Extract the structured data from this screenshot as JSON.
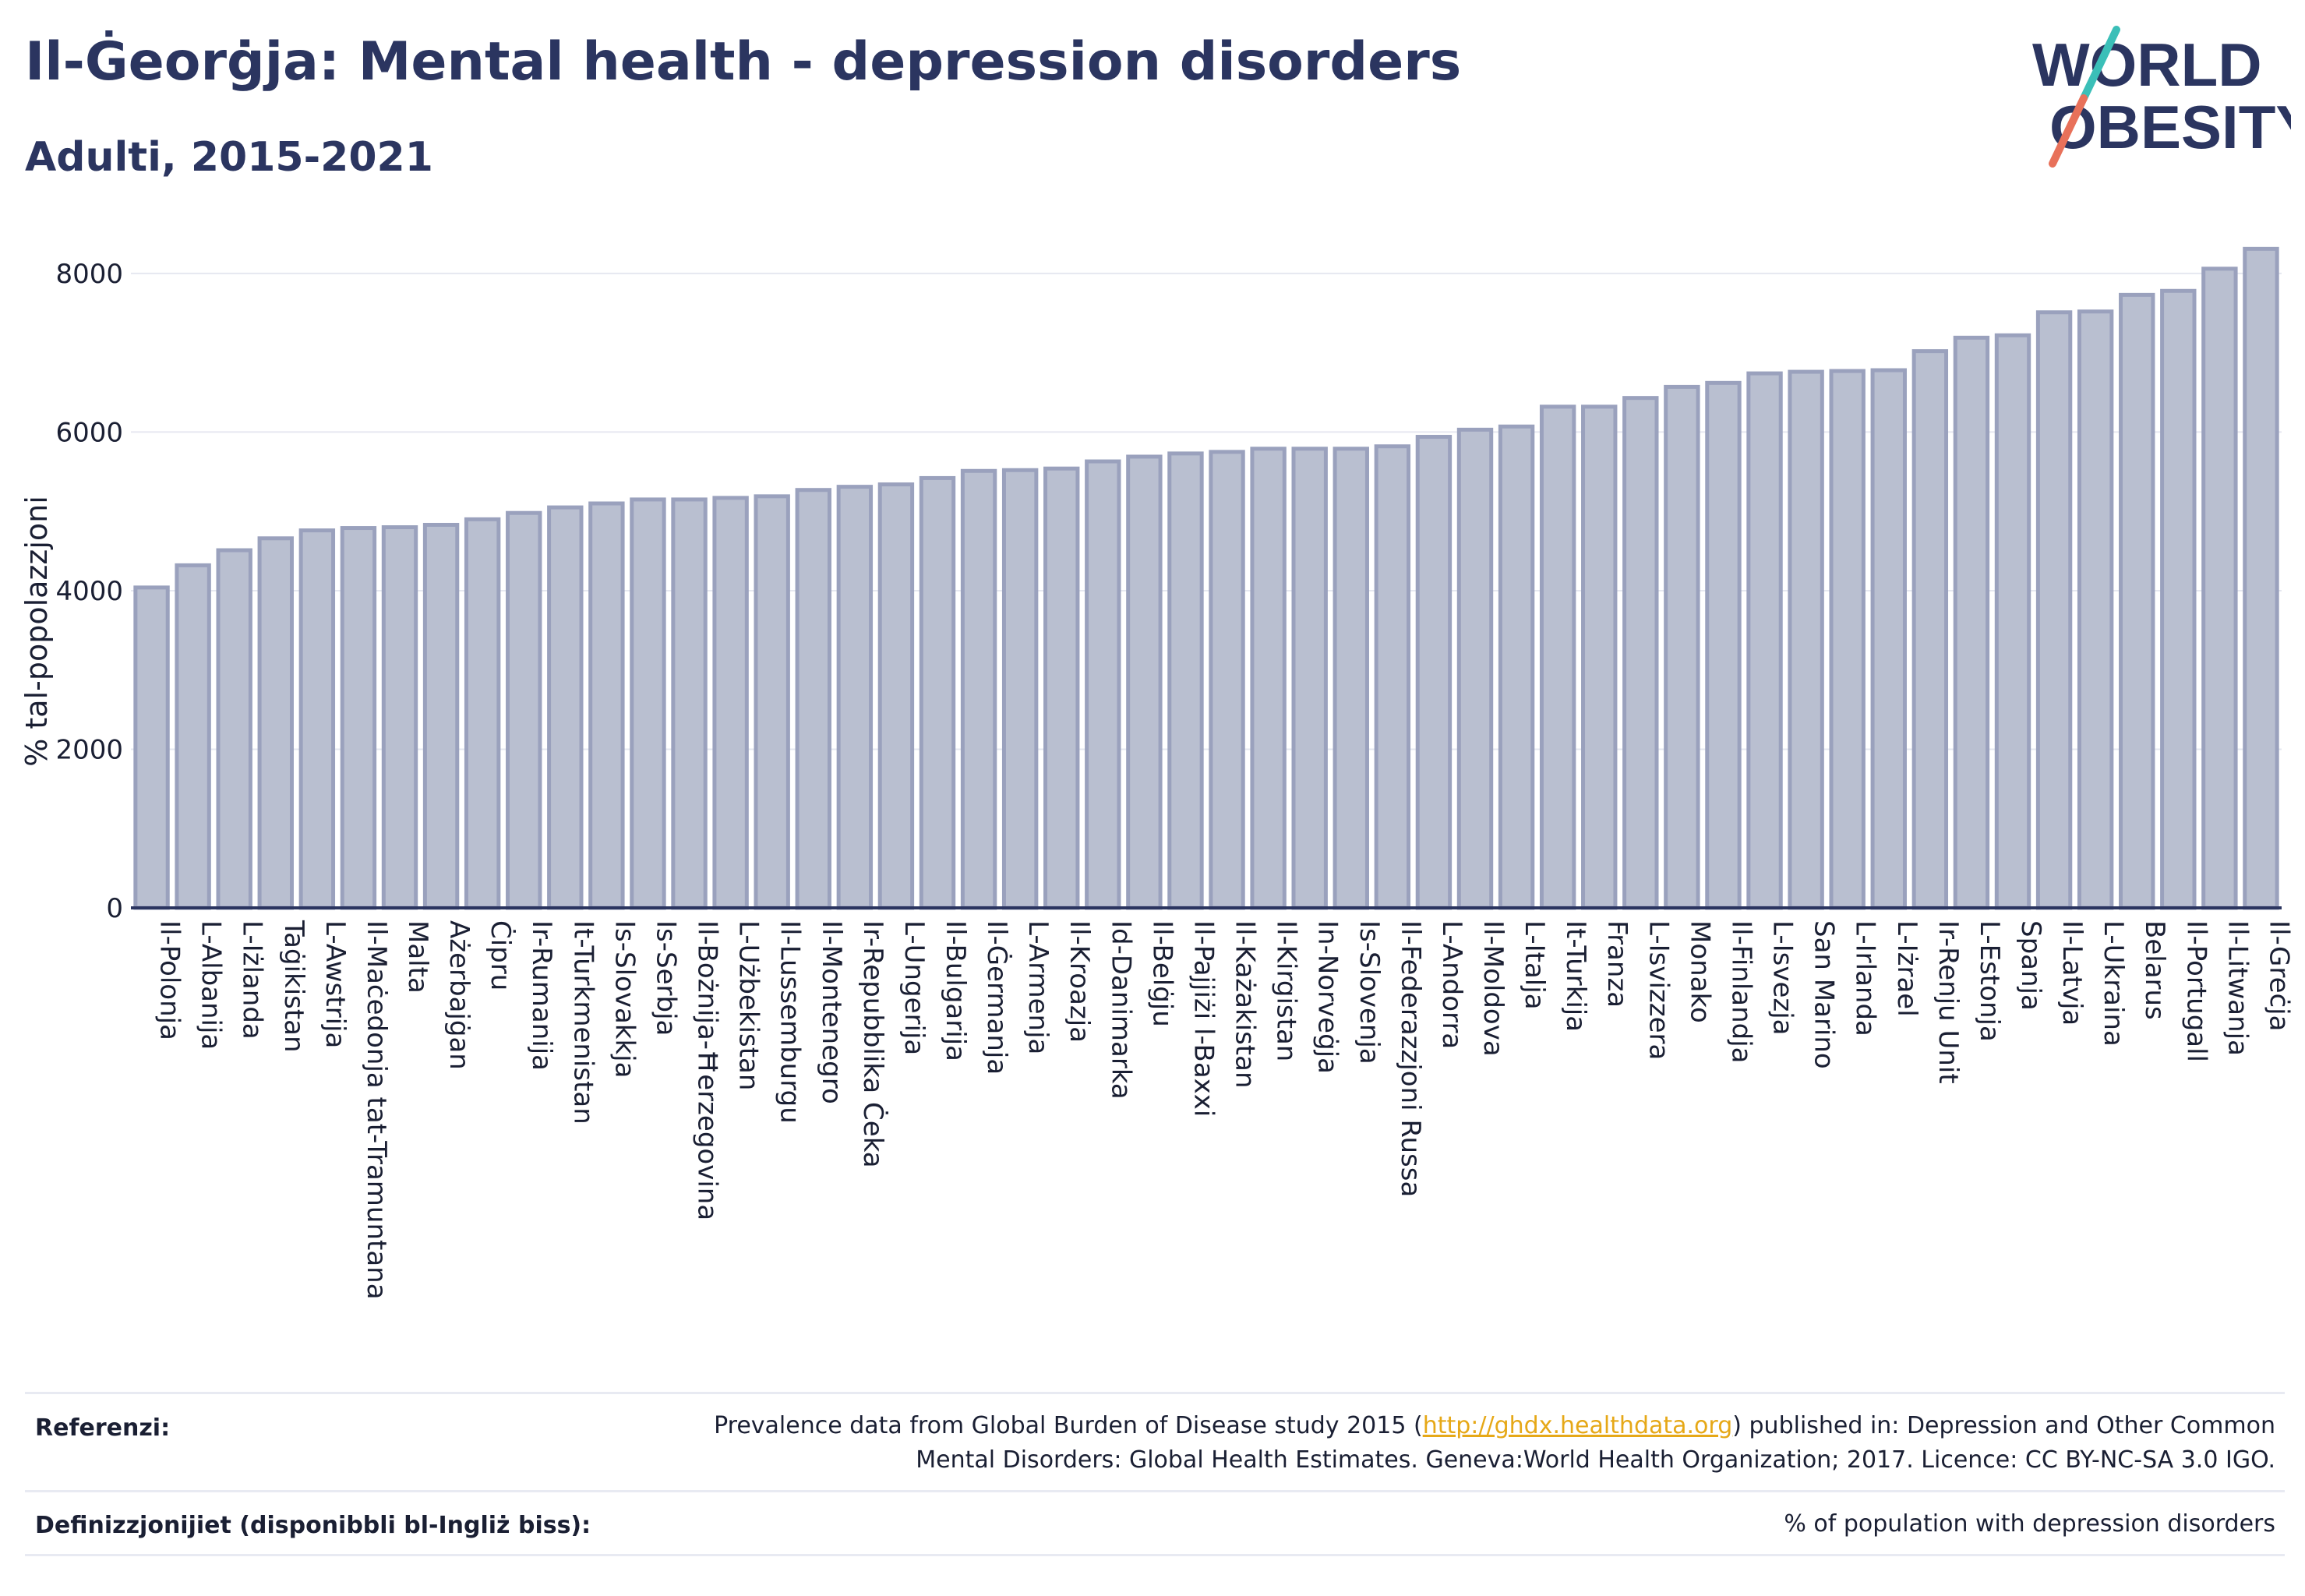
{
  "header": {
    "title": "Il-Ġeorġja: Mental health - depression disorders",
    "subtitle": "Adulti, 2015-2021"
  },
  "logo": {
    "line1": "WORLD",
    "line2": "OBESITY",
    "accent_teal": "#3bbfb8",
    "accent_coral": "#e8715a",
    "text_color": "#2b3560"
  },
  "colors": {
    "bar_fill": "#b9bfd0",
    "bar_stroke": "#9aa1bd",
    "axis": "#2b3560",
    "grid": "#e6e8f0",
    "text": "#1a1f33"
  },
  "chart_data": {
    "type": "bar",
    "title": "Il-Ġeorġja: Mental health - depression disorders",
    "subtitle": "Adulti, 2015-2021",
    "xlabel": "",
    "ylabel": "% tal-popolazzjoni",
    "ylim": [
      0,
      8500
    ],
    "yticks": [
      0,
      2000,
      4000,
      6000,
      8000
    ],
    "grid": true,
    "categories": [
      "Il-Polonja",
      "L-Albanija",
      "L-Iżlanda",
      "Taġikistan",
      "L-Awstrija",
      "Il-Maċedonja tat-Tramuntana",
      "Malta",
      "Ażerbajġan",
      "Ċipru",
      "Ir-Rumanija",
      "It-Turkmenistan",
      "Is-Slovakkja",
      "Is-Serbja",
      "Il-Bożnija-Ħerzegovina",
      "L-Użbekistan",
      "Il-Lussemburgu",
      "Il-Montenegro",
      "Ir-Repubblika Ċeka",
      "L-Ungerija",
      "Il-Bulgarija",
      "Il-Ġermanja",
      "L-Armenja",
      "Il-Kroazja",
      "Id-Danimarka",
      "Il-Belġju",
      "Il-Pajjiżi l-Baxxi",
      "Il-Każakistan",
      "Il-Kirgistan",
      "In-Norveġja",
      "Is-Slovenja",
      "Il-Federazzjoni Russa",
      "L-Andorra",
      "Il-Moldova",
      "L-Italja",
      "It-Turkija",
      "Franza",
      "L-Isvizzera",
      "Monako",
      "Il-Finlandja",
      "L-Isvezja",
      "San Marino",
      "L-Irlanda",
      "L-Iżrael",
      "Ir-Renju Unit",
      "L-Estonja",
      "Spanja",
      "Il-Latvja",
      "L-Ukraina",
      "Belarus",
      "Il-Portugall",
      "Il-Litwanja",
      "Il-Greċja"
    ],
    "values": [
      4040,
      4320,
      4510,
      4660,
      4760,
      4790,
      4800,
      4830,
      4900,
      4980,
      5050,
      5100,
      5150,
      5150,
      5170,
      5190,
      5270,
      5310,
      5340,
      5420,
      5510,
      5520,
      5540,
      5630,
      5690,
      5730,
      5750,
      5790,
      5790,
      5790,
      5820,
      5940,
      6030,
      6070,
      6320,
      6320,
      6430,
      6570,
      6620,
      6740,
      6760,
      6770,
      6780,
      7020,
      7190,
      7220,
      7510,
      7520,
      7730,
      7780,
      8060,
      8310
    ]
  },
  "footer": {
    "references_label": "Referenzi:",
    "references_before": "Prevalence data from Global Burden of Disease study 2015 (",
    "references_link": "http://ghdx.healthdata.org",
    "references_after": ") published in: Depression and Other Common",
    "references_line2": "Mental Disorders: Global Health Estimates. Geneva:World Health Organization; 2017. Licence: CC BY-NC-SA 3.0 IGO.",
    "definitions_label": "Definizzjonijiet (disponibbli bl-Ingliż biss):",
    "definitions_text": "% of population with depression disorders"
  }
}
